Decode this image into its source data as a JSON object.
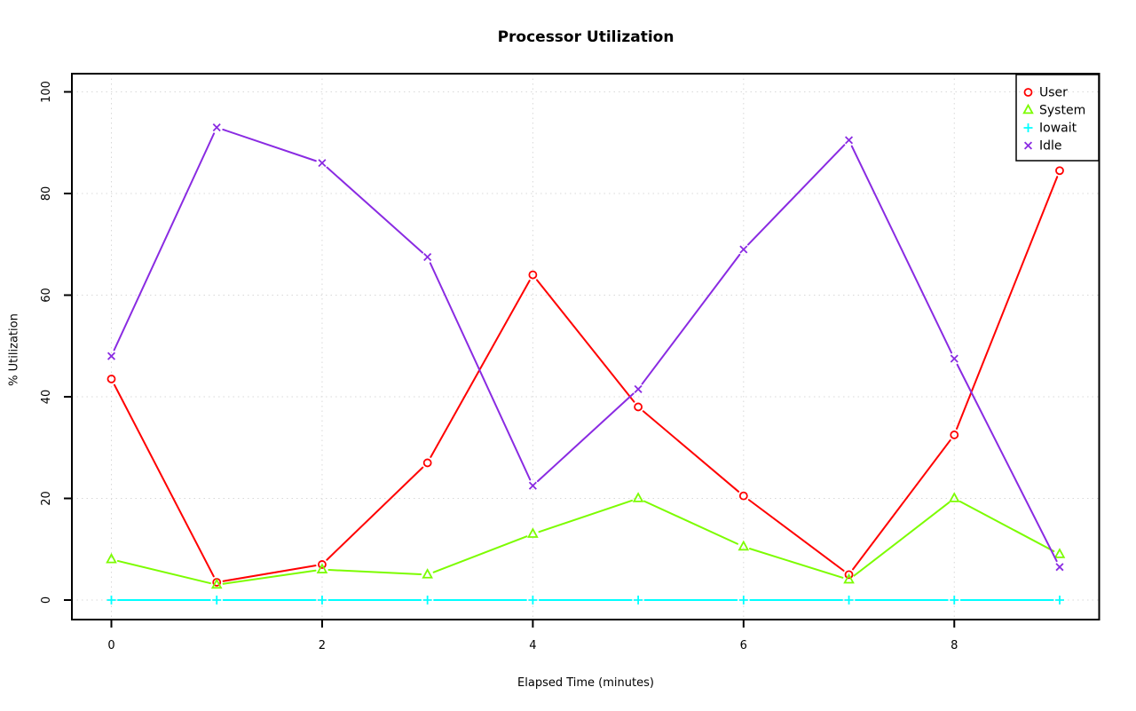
{
  "page": {
    "title": "Processor Utilization"
  },
  "chart_data": {
    "type": "line",
    "title": "Processor Utilization",
    "xlabel": "Elapsed Time (minutes)",
    "ylabel": "% Utilization",
    "x": [
      0,
      1,
      2,
      3,
      4,
      5,
      6,
      7,
      8,
      9
    ],
    "xlim": [
      0,
      9
    ],
    "ylim": [
      0,
      100
    ],
    "xticks": [
      0,
      2,
      4,
      6,
      8
    ],
    "yticks": [
      0,
      20,
      40,
      60,
      80,
      100
    ],
    "grid": {
      "style": "dotted",
      "color": "#D8D8D8",
      "vertical_at": [
        0,
        2,
        4,
        6,
        8
      ],
      "horizontal_at": [
        0,
        20,
        40,
        60,
        80,
        100
      ]
    },
    "legend": {
      "position": "top-right",
      "border": true,
      "transparent_fill": true,
      "entries": [
        "User",
        "System",
        "Iowait",
        "Idle"
      ]
    },
    "series": [
      {
        "name": "User",
        "color": "#FF0000",
        "marker": "circle",
        "values": [
          43.5,
          3.5,
          7,
          27,
          64,
          38,
          20.5,
          5,
          32.5,
          84.5
        ]
      },
      {
        "name": "System",
        "color": "#7CFC00",
        "marker": "triangle",
        "values": [
          8,
          3,
          6,
          5,
          13,
          20,
          10.5,
          4,
          20,
          9
        ]
      },
      {
        "name": "Iowait",
        "color": "#00FFFF",
        "marker": "plus",
        "values": [
          0,
          0,
          0,
          0,
          0,
          0,
          0,
          0,
          0,
          0
        ]
      },
      {
        "name": "Idle",
        "color": "#8A2BE2",
        "marker": "x",
        "values": [
          48,
          93,
          86,
          67.5,
          22.5,
          41.5,
          69,
          90.5,
          47.5,
          6.5
        ]
      }
    ]
  }
}
